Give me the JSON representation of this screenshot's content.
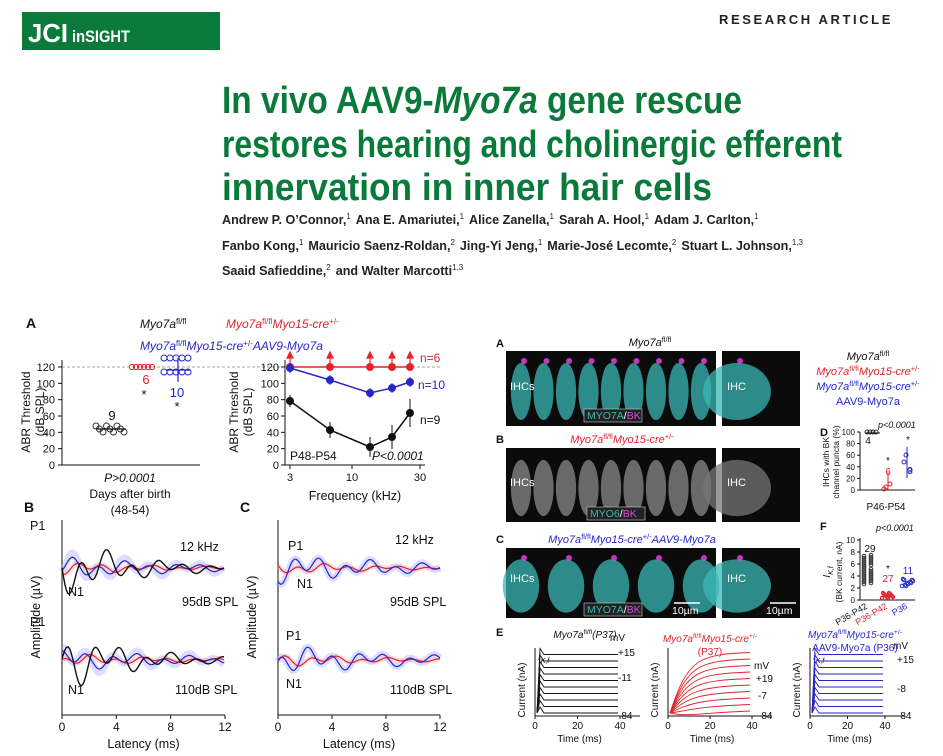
{
  "header": {
    "journal_mark": "JCI",
    "journal_name": "inSIGHT",
    "article_type": "RESEARCH ARTICLE"
  },
  "title": {
    "lines": [
      [
        "In vivo AAV9-",
        "Myo7a",
        " gene rescue"
      ],
      [
        "restores hearing and cholinergic efferent"
      ],
      [
        "innervation in inner hair cells"
      ]
    ]
  },
  "authors": {
    "lines": [
      [
        {
          "name": "Andrew P. O’Connor,",
          "aff": "1"
        },
        {
          "name": "Ana E. Amariutei,",
          "aff": "1"
        },
        {
          "name": "Alice Zanella,",
          "aff": "1"
        },
        {
          "name": "Sarah A. Hool,",
          "aff": "1"
        },
        {
          "name": "Adam J. Carlton,",
          "aff": "1"
        }
      ],
      [
        {
          "name": "Fanbo Kong,",
          "aff": "1"
        },
        {
          "name": "Mauricio Saenz-Roldan,",
          "aff": "2"
        },
        {
          "name": "Jing-Yi Jeng,",
          "aff": "1"
        },
        {
          "name": "Marie-José Lecomte,",
          "aff": "2"
        },
        {
          "name": "Stuart L. Johnson,",
          "aff": "1,3"
        }
      ],
      [
        {
          "name": "Saaid Safieddine,",
          "aff": "2"
        },
        {
          "name": "and Walter Marcotti",
          "aff": "1,3"
        }
      ]
    ]
  },
  "figure_left": {
    "panel_a": "A",
    "geno_ctrl": {
      "parts": [
        "Myo7a",
        "fl/fl"
      ]
    },
    "geno_ko": {
      "parts": [
        "Myo7a",
        "fl/fl",
        "Myo15-cre",
        "+/-"
      ]
    },
    "geno_rescue": {
      "parts": [
        "Myo7a",
        "fl/fl",
        "Myo15-cre",
        "+/-",
        "AAV9-Myo7a"
      ]
    },
    "days_ylabel": [
      "ABR Threshold",
      "(dB SPL)"
    ],
    "days_yticks": [
      0,
      20,
      40,
      60,
      80,
      100,
      120
    ],
    "days_n": [
      "9",
      "6",
      "10"
    ],
    "days_stars": [
      "*",
      "*"
    ],
    "days_p": "P>0.0001",
    "days_xlabel": [
      "Days after birth",
      "(48-54)"
    ],
    "freq_ylabel": [
      "ABR Threshold",
      "(dB SPL)"
    ],
    "freq_yticks": [
      0,
      20,
      40,
      60,
      80,
      100,
      120
    ],
    "freq_n": [
      "n=6",
      "n=10",
      "n=9"
    ],
    "freq_age": "P48-P54",
    "freq_p": "P<0.0001",
    "freq_xticks": [
      3,
      10,
      30
    ],
    "freq_xlabel": "Frequency (kHz)",
    "panel_b": "B",
    "b_texts": [
      "P1",
      "12 kHz",
      "N1",
      "95dB SPL",
      "P1",
      "N1",
      "110dB SPL"
    ],
    "b_ylabel": "Amplitude (µV)",
    "b_xticks": [
      0,
      4,
      8,
      12
    ],
    "b_xlabel": "Latency (ms)",
    "panel_c": "C",
    "c_texts": [
      "P1",
      "12 kHz",
      "N1",
      "95dB SPL",
      "P1",
      "N1",
      "110dB SPL"
    ],
    "c_ylabel": "Amplitude (µV)",
    "c_xticks": [
      0,
      4,
      8,
      12
    ],
    "c_xlabel": "Latency (ms)"
  },
  "figure_right": {
    "panel_a": "A",
    "a_title": {
      "parts": [
        "Myo7a",
        "fl/fl"
      ]
    },
    "legend_ctrl": {
      "parts": [
        "Myo7a",
        "fl/fl"
      ]
    },
    "legend_ko": {
      "parts": [
        "Myo7a",
        "fl/fl",
        "Myo15-cre",
        "+/-"
      ]
    },
    "legend_rescue": {
      "parts": [
        "Myo7a",
        "fl/fl",
        "Myo15-cre",
        "+/-"
      ]
    },
    "legend_rescue_2": "AAV9-Myo7a",
    "a_labels": [
      "IHCs",
      "IHC"
    ],
    "a_stain": [
      "MYO7A",
      "/",
      "BK"
    ],
    "panel_b": "B",
    "b_title": {
      "parts": [
        "Myo7a",
        "fl/fl",
        "Myo15-cre",
        "+/-"
      ]
    },
    "b_labels": [
      "IHCs",
      "IHC"
    ],
    "b_stain": [
      "MYO6",
      "/",
      "BK"
    ],
    "panel_c": "C",
    "c_title": {
      "parts": [
        "Myo7a",
        "fl/fl",
        "Myo15-cre",
        "+/-",
        "AAV9-Myo7a"
      ]
    },
    "c_labels": [
      "IHCs",
      "IHC"
    ],
    "c_stain": [
      "MYO7A",
      "/",
      "BK"
    ],
    "scale_bars": [
      "10µm",
      "10µm"
    ],
    "panel_d": "D",
    "d_ylabel": [
      "IHCs with BK",
      "channel puncta (%)"
    ],
    "d_yticks": [
      0,
      20,
      40,
      60,
      80,
      100
    ],
    "d_p": "p<0.0001",
    "d_n": [
      "4",
      "6",
      "3"
    ],
    "d_stars": [
      "*",
      "*"
    ],
    "d_xlabel": "P46-P54",
    "panel_f": "F",
    "f_p": "p<0.0001",
    "f_ylabel": {
      "base": "I",
      "sub": "K,f"
    },
    "f_ylabel_2": "(BK current, nA)",
    "f_yticks": [
      0,
      2,
      4,
      6,
      8,
      10
    ],
    "f_n": [
      "29",
      "27",
      "11"
    ],
    "f_star": "*",
    "f_xticks": [
      "P36-P42",
      "P36-P42",
      "P36"
    ],
    "panel_e": "E",
    "e_panels": [
      {
        "title": {
          "parts": [
            "Myo7a",
            "fl/fl",
            "(P37)"
          ]
        },
        "ikf": {
          "base": "I",
          "sub": "K,f"
        },
        "levels": [
          "mV",
          "+15",
          "-11",
          "-84"
        ],
        "ylabel": "Current (nA)",
        "xticks": [
          0,
          20,
          40
        ],
        "xlabel": "Time (ms)"
      },
      {
        "title": {
          "parts": [
            "Myo7a",
            "fl/fl",
            "Myo15-cre",
            "+/-"
          ]
        },
        "subtitle": "(P37)",
        "levels": [
          "mV",
          "+19",
          "-7",
          "-84"
        ],
        "ylabel": "Current (nA)",
        "xticks": [
          0,
          20,
          40
        ],
        "xlabel": "Time (ms)"
      },
      {
        "title": {
          "parts": [
            "Myo7a",
            "fl/fl",
            "Myo15-cre",
            "+/-"
          ]
        },
        "subtitle": "AAV9-Myo7a (P36)",
        "ikf": {
          "base": "I",
          "sub": "K,f"
        },
        "levels": [
          "mV",
          "+15",
          "-8",
          "-84"
        ],
        "ylabel": "Current (nA)",
        "xticks": [
          0,
          20,
          40
        ],
        "xlabel": "Time (ms)"
      }
    ]
  }
}
